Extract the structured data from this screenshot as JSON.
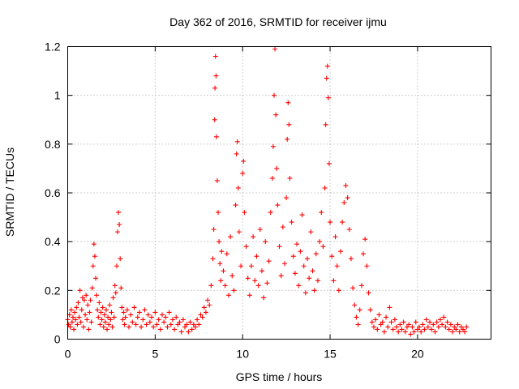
{
  "chart_data": {
    "type": "scatter",
    "title": "Day 362 of 2016, SRMTID for receiver ijmu",
    "xlabel": "GPS time / hours",
    "ylabel": "SRMTID / TECUs",
    "xlim": [
      0,
      24.2
    ],
    "ylim": [
      0,
      1.2
    ],
    "xticks": [
      0,
      5,
      10,
      15,
      20
    ],
    "xtick_labels": [
      "0",
      "5",
      "10",
      "15",
      "20"
    ],
    "yticks": [
      0,
      0.2,
      0.4,
      0.6,
      0.8,
      1.0,
      1.2
    ],
    "ytick_labels": [
      "0",
      "0.2",
      "0.4",
      "0.6",
      "0.8",
      "1",
      "1.2"
    ],
    "grid": true,
    "marker": "+",
    "series": [
      {
        "name": "SRMTID",
        "color": "#ff0000",
        "points": [
          [
            0.0,
            0.08
          ],
          [
            0.05,
            0.06
          ],
          [
            0.1,
            0.1
          ],
          [
            0.15,
            0.05
          ],
          [
            0.2,
            0.12
          ],
          [
            0.25,
            0.07
          ],
          [
            0.3,
            0.09
          ],
          [
            0.35,
            0.04
          ],
          [
            0.4,
            0.11
          ],
          [
            0.45,
            0.08
          ],
          [
            0.5,
            0.13
          ],
          [
            0.55,
            0.06
          ],
          [
            0.6,
            0.15
          ],
          [
            0.65,
            0.09
          ],
          [
            0.7,
            0.2
          ],
          [
            0.75,
            0.07
          ],
          [
            0.8,
            0.12
          ],
          [
            0.85,
            0.17
          ],
          [
            0.9,
            0.05
          ],
          [
            0.95,
            0.16
          ],
          [
            1.0,
            0.1
          ],
          [
            1.05,
            0.18
          ],
          [
            1.1,
            0.08
          ],
          [
            1.15,
            0.14
          ],
          [
            1.2,
            0.04
          ],
          [
            1.25,
            0.11
          ],
          [
            1.3,
            0.16
          ],
          [
            1.35,
            0.07
          ],
          [
            1.4,
            0.21
          ],
          [
            1.45,
            0.3
          ],
          [
            1.5,
            0.39
          ],
          [
            1.55,
            0.34
          ],
          [
            1.6,
            0.25
          ],
          [
            1.65,
            0.18
          ],
          [
            1.7,
            0.12
          ],
          [
            1.75,
            0.09
          ],
          [
            1.8,
            0.15
          ],
          [
            1.85,
            0.06
          ],
          [
            1.9,
            0.11
          ],
          [
            1.95,
            0.08
          ],
          [
            2.0,
            0.13
          ],
          [
            2.05,
            0.05
          ],
          [
            2.1,
            0.1
          ],
          [
            2.15,
            0.07
          ],
          [
            2.2,
            0.12
          ],
          [
            2.25,
            0.04
          ],
          [
            2.3,
            0.09
          ],
          [
            2.35,
            0.06
          ],
          [
            2.4,
            0.14
          ],
          [
            2.45,
            0.08
          ],
          [
            2.5,
            0.11
          ],
          [
            2.55,
            0.05
          ],
          [
            2.6,
            0.17
          ],
          [
            2.65,
            0.09
          ],
          [
            2.7,
            0.22
          ],
          [
            2.75,
            0.19
          ],
          [
            2.8,
            0.3
          ],
          [
            2.85,
            0.44
          ],
          [
            2.9,
            0.52
          ],
          [
            2.95,
            0.47
          ],
          [
            3.0,
            0.33
          ],
          [
            3.05,
            0.21
          ],
          [
            3.1,
            0.13
          ],
          [
            3.15,
            0.08
          ],
          [
            3.2,
            0.11
          ],
          [
            3.25,
            0.06
          ],
          [
            3.3,
            0.09
          ],
          [
            3.4,
            0.12
          ],
          [
            3.5,
            0.05
          ],
          [
            3.6,
            0.1
          ],
          [
            3.7,
            0.07
          ],
          [
            3.8,
            0.13
          ],
          [
            3.9,
            0.06
          ],
          [
            4.0,
            0.09
          ],
          [
            4.1,
            0.11
          ],
          [
            4.2,
            0.05
          ],
          [
            4.3,
            0.08
          ],
          [
            4.4,
            0.12
          ],
          [
            4.5,
            0.06
          ],
          [
            4.6,
            0.1
          ],
          [
            4.7,
            0.07
          ],
          [
            4.8,
            0.09
          ],
          [
            4.9,
            0.05
          ],
          [
            5.0,
            0.11
          ],
          [
            5.1,
            0.06
          ],
          [
            5.2,
            0.08
          ],
          [
            5.3,
            0.04
          ],
          [
            5.4,
            0.1
          ],
          [
            5.5,
            0.07
          ],
          [
            5.6,
            0.09
          ],
          [
            5.7,
            0.05
          ],
          [
            5.8,
            0.11
          ],
          [
            5.9,
            0.06
          ],
          [
            6.0,
            0.08
          ],
          [
            6.1,
            0.04
          ],
          [
            6.2,
            0.09
          ],
          [
            6.3,
            0.06
          ],
          [
            6.4,
            0.07
          ],
          [
            6.5,
            0.03
          ],
          [
            6.6,
            0.08
          ],
          [
            6.7,
            0.05
          ],
          [
            6.8,
            0.06
          ],
          [
            6.9,
            0.03
          ],
          [
            7.0,
            0.07
          ],
          [
            7.1,
            0.04
          ],
          [
            7.2,
            0.06
          ],
          [
            7.3,
            0.05
          ],
          [
            7.4,
            0.08
          ],
          [
            7.5,
            0.06
          ],
          [
            7.6,
            0.1
          ],
          [
            7.7,
            0.09
          ],
          [
            7.8,
            0.13
          ],
          [
            7.9,
            0.11
          ],
          [
            8.0,
            0.16
          ],
          [
            8.1,
            0.14
          ],
          [
            8.2,
            0.22
          ],
          [
            8.3,
            0.33
          ],
          [
            8.35,
            0.45
          ],
          [
            8.4,
            0.9
          ],
          [
            8.42,
            1.03
          ],
          [
            8.45,
            1.16
          ],
          [
            8.48,
            1.08
          ],
          [
            8.5,
            0.83
          ],
          [
            8.55,
            0.65
          ],
          [
            8.6,
            0.52
          ],
          [
            8.65,
            0.4
          ],
          [
            8.7,
            0.31
          ],
          [
            8.75,
            0.24
          ],
          [
            8.8,
            0.36
          ],
          [
            8.9,
            0.28
          ],
          [
            9.0,
            0.22
          ],
          [
            9.1,
            0.35
          ],
          [
            9.2,
            0.18
          ],
          [
            9.3,
            0.42
          ],
          [
            9.4,
            0.26
          ],
          [
            9.5,
            0.2
          ],
          [
            9.6,
            0.55
          ],
          [
            9.65,
            0.76
          ],
          [
            9.7,
            0.81
          ],
          [
            9.75,
            0.62
          ],
          [
            9.8,
            0.44
          ],
          [
            9.9,
            0.3
          ],
          [
            10.0,
            0.68
          ],
          [
            10.05,
            0.73
          ],
          [
            10.1,
            0.52
          ],
          [
            10.2,
            0.38
          ],
          [
            10.3,
            0.25
          ],
          [
            10.4,
            0.18
          ],
          [
            10.5,
            0.3
          ],
          [
            10.6,
            0.42
          ],
          [
            10.7,
            0.24
          ],
          [
            10.8,
            0.34
          ],
          [
            10.9,
            0.22
          ],
          [
            11.0,
            0.45
          ],
          [
            11.1,
            0.28
          ],
          [
            11.2,
            0.17
          ],
          [
            11.3,
            0.4
          ],
          [
            11.4,
            0.23
          ],
          [
            11.5,
            0.32
          ],
          [
            11.6,
            0.52
          ],
          [
            11.7,
            0.66
          ],
          [
            11.75,
            0.79
          ],
          [
            11.8,
            1.0
          ],
          [
            11.85,
            1.19
          ],
          [
            11.9,
            0.92
          ],
          [
            11.95,
            0.7
          ],
          [
            12.0,
            0.55
          ],
          [
            12.1,
            0.38
          ],
          [
            12.2,
            0.26
          ],
          [
            12.3,
            0.46
          ],
          [
            12.4,
            0.31
          ],
          [
            12.5,
            0.58
          ],
          [
            12.55,
            0.82
          ],
          [
            12.6,
            0.97
          ],
          [
            12.65,
            0.88
          ],
          [
            12.7,
            0.66
          ],
          [
            12.8,
            0.48
          ],
          [
            12.9,
            0.34
          ],
          [
            13.0,
            0.27
          ],
          [
            13.1,
            0.39
          ],
          [
            13.2,
            0.22
          ],
          [
            13.3,
            0.36
          ],
          [
            13.4,
            0.51
          ],
          [
            13.5,
            0.3
          ],
          [
            13.6,
            0.19
          ],
          [
            13.7,
            0.33
          ],
          [
            13.8,
            0.25
          ],
          [
            13.9,
            0.44
          ],
          [
            14.0,
            0.28
          ],
          [
            14.1,
            0.2
          ],
          [
            14.2,
            0.35
          ],
          [
            14.3,
            0.24
          ],
          [
            14.4,
            0.4
          ],
          [
            14.5,
            0.52
          ],
          [
            14.6,
            0.38
          ],
          [
            14.7,
            0.62
          ],
          [
            14.75,
            0.88
          ],
          [
            14.8,
            1.07
          ],
          [
            14.85,
            1.12
          ],
          [
            14.9,
            0.99
          ],
          [
            14.95,
            0.72
          ],
          [
            15.0,
            0.48
          ],
          [
            15.1,
            0.34
          ],
          [
            15.2,
            0.24
          ],
          [
            15.3,
            0.42
          ],
          [
            15.4,
            0.3
          ],
          [
            15.5,
            0.2
          ],
          [
            15.6,
            0.36
          ],
          [
            15.7,
            0.48
          ],
          [
            15.8,
            0.56
          ],
          [
            15.9,
            0.63
          ],
          [
            16.0,
            0.58
          ],
          [
            16.1,
            0.45
          ],
          [
            16.2,
            0.33
          ],
          [
            16.3,
            0.21
          ],
          [
            16.4,
            0.14
          ],
          [
            16.5,
            0.09
          ],
          [
            16.6,
            0.06
          ],
          [
            16.7,
            0.12
          ],
          [
            16.8,
            0.22
          ],
          [
            16.9,
            0.35
          ],
          [
            17.0,
            0.41
          ],
          [
            17.1,
            0.3
          ],
          [
            17.2,
            0.19
          ],
          [
            17.3,
            0.12
          ],
          [
            17.4,
            0.07
          ],
          [
            17.5,
            0.05
          ],
          [
            17.6,
            0.08
          ],
          [
            17.7,
            0.04
          ],
          [
            17.8,
            0.1
          ],
          [
            17.9,
            0.06
          ],
          [
            18.0,
            0.07
          ],
          [
            18.1,
            0.03
          ],
          [
            18.2,
            0.09
          ],
          [
            18.3,
            0.05
          ],
          [
            18.4,
            0.13
          ],
          [
            18.5,
            0.07
          ],
          [
            18.6,
            0.04
          ],
          [
            18.7,
            0.08
          ],
          [
            18.8,
            0.05
          ],
          [
            18.9,
            0.03
          ],
          [
            19.0,
            0.06
          ],
          [
            19.1,
            0.04
          ],
          [
            19.2,
            0.07
          ],
          [
            19.3,
            0.03
          ],
          [
            19.4,
            0.05
          ],
          [
            19.5,
            0.06
          ],
          [
            19.6,
            0.02
          ],
          [
            19.7,
            0.05
          ],
          [
            19.8,
            0.03
          ],
          [
            19.9,
            0.07
          ],
          [
            20.0,
            0.04
          ],
          [
            20.1,
            0.05
          ],
          [
            20.2,
            0.03
          ],
          [
            20.3,
            0.06
          ],
          [
            20.4,
            0.04
          ],
          [
            20.5,
            0.08
          ],
          [
            20.6,
            0.05
          ],
          [
            20.7,
            0.07
          ],
          [
            20.8,
            0.04
          ],
          [
            20.9,
            0.06
          ],
          [
            21.0,
            0.03
          ],
          [
            21.1,
            0.07
          ],
          [
            21.2,
            0.05
          ],
          [
            21.3,
            0.08
          ],
          [
            21.4,
            0.06
          ],
          [
            21.5,
            0.09
          ],
          [
            21.6,
            0.05
          ],
          [
            21.7,
            0.07
          ],
          [
            21.8,
            0.04
          ],
          [
            21.9,
            0.06
          ],
          [
            22.0,
            0.03
          ],
          [
            22.1,
            0.05
          ],
          [
            22.2,
            0.04
          ],
          [
            22.3,
            0.06
          ],
          [
            22.4,
            0.03
          ],
          [
            22.5,
            0.05
          ],
          [
            22.6,
            0.04
          ],
          [
            22.7,
            0.03
          ],
          [
            22.8,
            0.05
          ]
        ]
      }
    ]
  }
}
